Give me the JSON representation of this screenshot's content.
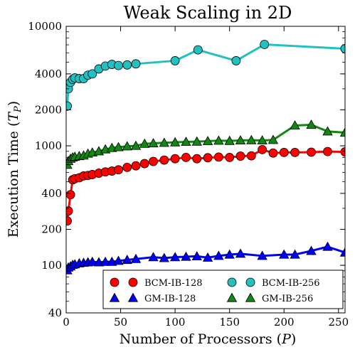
{
  "chart_data": {
    "type": "line",
    "title": "Weak Scaling in 2D",
    "xlabel": "Number of Processors (P)",
    "ylabel": "Execution Time (T_P)",
    "xlim": [
      0,
      256
    ],
    "ylim": [
      40,
      10000
    ],
    "yscale": "log",
    "xticks": [
      0,
      50,
      100,
      150,
      200,
      250
    ],
    "yticks": [
      40,
      100,
      200,
      400,
      1000,
      2000,
      4000,
      10000
    ],
    "grid": false,
    "legend_position": "bottom-right",
    "series": [
      {
        "name": "BCM-IB-128",
        "color": "#ff0000",
        "marker": "circle",
        "x": [
          1,
          2,
          4,
          6,
          8,
          12,
          16,
          20,
          24,
          30,
          36,
          42,
          48,
          56,
          64,
          72,
          80,
          90,
          100,
          110,
          120,
          130,
          140,
          150,
          160,
          170,
          180,
          190,
          200,
          210,
          225,
          240,
          256
        ],
        "y": [
          235,
          285,
          390,
          520,
          530,
          540,
          560,
          565,
          575,
          590,
          605,
          615,
          630,
          660,
          680,
          710,
          740,
          760,
          780,
          800,
          780,
          795,
          805,
          800,
          820,
          825,
          930,
          870,
          880,
          880,
          885,
          895,
          890
        ]
      },
      {
        "name": "BCM-IB-256",
        "color": "#22c0c0",
        "marker": "circle",
        "x": [
          1,
          2,
          4,
          6,
          8,
          12,
          16,
          20,
          24,
          30,
          36,
          42,
          48,
          56,
          64,
          100,
          121,
          156,
          182,
          256
        ],
        "y": [
          2150,
          3000,
          3400,
          3600,
          3700,
          3650,
          3650,
          3900,
          4000,
          4400,
          4650,
          4800,
          4700,
          4750,
          4850,
          5150,
          6350,
          5150,
          7050,
          6500
        ]
      },
      {
        "name": "GM-IB-128",
        "color": "#0000ff",
        "marker": "triangle",
        "x": [
          1,
          2,
          4,
          6,
          8,
          12,
          16,
          20,
          24,
          30,
          36,
          42,
          48,
          56,
          64,
          80,
          90,
          100,
          110,
          120,
          130,
          140,
          150,
          160,
          180,
          200,
          210,
          225,
          240,
          256
        ],
        "y": [
          91,
          96,
          98,
          101,
          102,
          104,
          105,
          106,
          107,
          106,
          107,
          107,
          109,
          111,
          113,
          117,
          115,
          117,
          118,
          119,
          116,
          120,
          123,
          125,
          120,
          123,
          123,
          132,
          143,
          128
        ]
      },
      {
        "name": "GM-IB-256",
        "color": "#118811",
        "marker": "triangle",
        "x": [
          1,
          2,
          4,
          6,
          8,
          12,
          16,
          20,
          24,
          30,
          36,
          42,
          48,
          56,
          64,
          72,
          80,
          90,
          100,
          110,
          120,
          130,
          140,
          150,
          160,
          170,
          180,
          190,
          210,
          225,
          240,
          256
        ],
        "y": [
          695,
          745,
          780,
          800,
          810,
          820,
          830,
          860,
          880,
          900,
          935,
          960,
          975,
          990,
          1000,
          1040,
          1050,
          1060,
          1070,
          1080,
          1085,
          1095,
          1105,
          1100,
          1110,
          1115,
          1110,
          1120,
          1480,
          1500,
          1320,
          1290
        ]
      }
    ]
  }
}
